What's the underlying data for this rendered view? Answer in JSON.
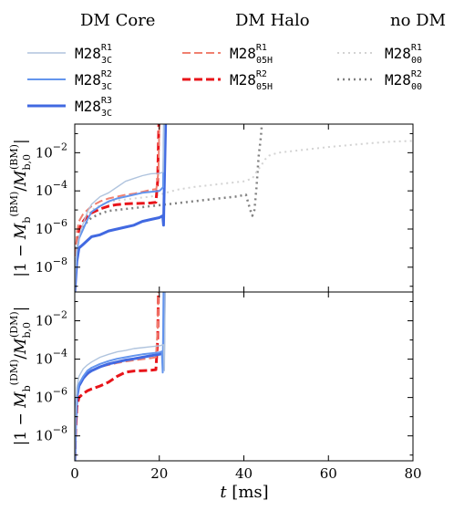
{
  "legend": {
    "groups": [
      {
        "title": "DM Core",
        "entries": [
          {
            "base": "M28",
            "sub": "3C",
            "sup": "R1",
            "color": "#b0c4de",
            "dash": "solid",
            "width": 1.4
          },
          {
            "base": "M28",
            "sub": "3C",
            "sup": "R2",
            "color": "#6495ed",
            "dash": "solid",
            "width": 2.0
          },
          {
            "base": "M28",
            "sub": "3C",
            "sup": "R3",
            "color": "#4169e1",
            "dash": "solid",
            "width": 3.0
          }
        ]
      },
      {
        "title": "DM Halo",
        "entries": [
          {
            "base": "M28",
            "sub": "05H",
            "sup": "R1",
            "color": "#f08070",
            "dash": "dashed",
            "width": 2.0
          },
          {
            "base": "M28",
            "sub": "05H",
            "sup": "R2",
            "color": "#e8141a",
            "dash": "dashed",
            "width": 3.0
          }
        ]
      },
      {
        "title": "no DM",
        "entries": [
          {
            "base": "M28",
            "sub": "00",
            "sup": "R1",
            "color": "#d3d3d3",
            "dash": "dotted",
            "width": 2.0
          },
          {
            "base": "M28",
            "sub": "00",
            "sup": "R2",
            "color": "#808080",
            "dash": "dotted",
            "width": 2.5
          }
        ]
      }
    ]
  },
  "chart_data": [
    {
      "type": "line",
      "panel": "top",
      "ylabel": "|1 − M_b^(BM)/M_b,0^(BM)|",
      "xlim": [
        0,
        80
      ],
      "ylim_log10": [
        -9.3,
        -0.5
      ],
      "yscale": "log",
      "yticks": [
        "10^-8",
        "10^-6",
        "10^-4",
        "10^-2"
      ],
      "series": [
        {
          "name": "M28_3C^R1",
          "points": [
            [
              0,
              -9.3
            ],
            [
              0.2,
              -8.0
            ],
            [
              0.5,
              -7
            ],
            [
              1,
              -6.4
            ],
            [
              2,
              -5.7
            ],
            [
              3,
              -5.1
            ],
            [
              4,
              -4.7
            ],
            [
              6,
              -4.3
            ],
            [
              8,
              -4.1
            ],
            [
              10,
              -3.8
            ],
            [
              12,
              -3.5
            ],
            [
              14,
              -3.35
            ],
            [
              16,
              -3.2
            ],
            [
              18,
              -3.1
            ],
            [
              20,
              -3.08
            ],
            [
              20.5,
              -3.05
            ],
            [
              20.9,
              -3.0
            ],
            [
              21.1,
              -0.4
            ]
          ]
        },
        {
          "name": "M28_3C^R2",
          "points": [
            [
              0,
              -9.3
            ],
            [
              0.2,
              -8.2
            ],
            [
              0.5,
              -7.2
            ],
            [
              1,
              -6.5
            ],
            [
              2,
              -6.0
            ],
            [
              3,
              -5.5
            ],
            [
              4,
              -5.1
            ],
            [
              6,
              -4.8
            ],
            [
              8,
              -4.55
            ],
            [
              10,
              -4.4
            ],
            [
              12,
              -4.3
            ],
            [
              14,
              -4.2
            ],
            [
              16,
              -4.1
            ],
            [
              18,
              -4.05
            ],
            [
              20,
              -4.0
            ],
            [
              20.5,
              -3.9
            ],
            [
              20.9,
              -3.8
            ],
            [
              21.1,
              -0.4
            ]
          ]
        },
        {
          "name": "M28_3C^R3",
          "points": [
            [
              0,
              -9.3
            ],
            [
              0.2,
              -8.7
            ],
            [
              0.5,
              -7.7
            ],
            [
              1,
              -7.0
            ],
            [
              2,
              -6.8
            ],
            [
              3,
              -6.6
            ],
            [
              4,
              -6.4
            ],
            [
              6,
              -6.3
            ],
            [
              8,
              -6.1
            ],
            [
              10,
              -6.0
            ],
            [
              12,
              -5.9
            ],
            [
              14,
              -5.8
            ],
            [
              16,
              -5.6
            ],
            [
              18,
              -5.5
            ],
            [
              20,
              -5.4
            ],
            [
              20.8,
              -5.3
            ],
            [
              21.0,
              -5.8
            ],
            [
              21.1,
              -4.5
            ],
            [
              21.5,
              -0.4
            ]
          ]
        },
        {
          "name": "M28_05H^R1",
          "points": [
            [
              0,
              -9.3
            ],
            [
              0.2,
              -7.5
            ],
            [
              0.5,
              -6.2
            ],
            [
              1,
              -5.6
            ],
            [
              2,
              -5.2
            ],
            [
              3,
              -5.0
            ],
            [
              4,
              -4.8
            ],
            [
              6,
              -4.55
            ],
            [
              8,
              -4.4
            ],
            [
              10,
              -4.3
            ],
            [
              12,
              -4.2
            ],
            [
              14,
              -4.15
            ],
            [
              16,
              -4.05
            ],
            [
              18,
              -3.95
            ],
            [
              19.3,
              -3.9
            ],
            [
              19.8,
              -3.0
            ],
            [
              20.0,
              -0.4
            ]
          ]
        },
        {
          "name": "M28_05H^R2",
          "points": [
            [
              0,
              -9.3
            ],
            [
              0.2,
              -7.8
            ],
            [
              0.5,
              -6.7
            ],
            [
              1,
              -6.0
            ],
            [
              2,
              -5.6
            ],
            [
              3,
              -5.3
            ],
            [
              4,
              -5.15
            ],
            [
              6,
              -4.95
            ],
            [
              8,
              -4.8
            ],
            [
              10,
              -4.72
            ],
            [
              12,
              -4.68
            ],
            [
              14,
              -4.66
            ],
            [
              16,
              -4.65
            ],
            [
              18,
              -4.63
            ],
            [
              19.2,
              -4.6
            ],
            [
              19.6,
              -3.5
            ],
            [
              19.9,
              -0.4
            ]
          ]
        },
        {
          "name": "M28_00^R1",
          "points": [
            [
              0,
              -9.3
            ],
            [
              0.2,
              -7.5
            ],
            [
              0.5,
              -6.5
            ],
            [
              1,
              -6.0
            ],
            [
              2,
              -5.6
            ],
            [
              3,
              -5.3
            ],
            [
              4,
              -5.0
            ],
            [
              6,
              -4.75
            ],
            [
              8,
              -4.6
            ],
            [
              10,
              -4.5
            ],
            [
              12,
              -4.45
            ],
            [
              14,
              -4.4
            ],
            [
              16,
              -4.35
            ],
            [
              18,
              -4.3
            ],
            [
              20,
              -4.2
            ],
            [
              24,
              -3.95
            ],
            [
              28,
              -3.8
            ],
            [
              32,
              -3.7
            ],
            [
              36,
              -3.6
            ],
            [
              40,
              -3.5
            ],
            [
              42,
              -3.35
            ],
            [
              43,
              -3.0
            ],
            [
              44,
              -2.7
            ],
            [
              45,
              -2.35
            ],
            [
              46,
              -2.15
            ],
            [
              48,
              -2.0
            ],
            [
              52,
              -1.9
            ],
            [
              56,
              -1.8
            ],
            [
              60,
              -1.7
            ],
            [
              65,
              -1.6
            ],
            [
              70,
              -1.5
            ],
            [
              75,
              -1.42
            ],
            [
              80,
              -1.38
            ]
          ]
        },
        {
          "name": "M28_00^R2",
          "points": [
            [
              0,
              -9.3
            ],
            [
              0.2,
              -7.6
            ],
            [
              0.5,
              -6.7
            ],
            [
              1,
              -6.3
            ],
            [
              2,
              -5.9
            ],
            [
              3,
              -5.6
            ],
            [
              4,
              -5.4
            ],
            [
              6,
              -5.2
            ],
            [
              8,
              -5.05
            ],
            [
              10,
              -5.0
            ],
            [
              12,
              -4.95
            ],
            [
              14,
              -4.9
            ],
            [
              16,
              -4.85
            ],
            [
              18,
              -4.8
            ],
            [
              20,
              -4.75
            ],
            [
              22,
              -4.7
            ],
            [
              26,
              -4.6
            ],
            [
              30,
              -4.5
            ],
            [
              34,
              -4.4
            ],
            [
              38,
              -4.3
            ],
            [
              40.5,
              -4.2
            ],
            [
              41.5,
              -5.0
            ],
            [
              42,
              -5.3
            ],
            [
              42.5,
              -5.0
            ],
            [
              43,
              -3.8
            ],
            [
              43.5,
              -2.2
            ],
            [
              44,
              -1.2
            ],
            [
              44.3,
              -0.4
            ]
          ]
        }
      ]
    },
    {
      "type": "line",
      "panel": "bottom",
      "ylabel": "|1 − M_b^(DM)/M_b,0^(DM)|",
      "xlabel": "t [ms]",
      "xlim": [
        0,
        80
      ],
      "xticks": [
        "0",
        "20",
        "40",
        "60",
        "80"
      ],
      "ylim_log10": [
        -9.3,
        -0.5
      ],
      "yscale": "log",
      "yticks": [
        "10^-8",
        "10^-6",
        "10^-4",
        "10^-2"
      ],
      "series": [
        {
          "name": "M28_3C^R1",
          "points": [
            [
              0,
              -9.3
            ],
            [
              0.2,
              -7.0
            ],
            [
              0.5,
              -5.5
            ],
            [
              1,
              -4.9
            ],
            [
              2,
              -4.5
            ],
            [
              3,
              -4.3
            ],
            [
              4,
              -4.15
            ],
            [
              6,
              -3.9
            ],
            [
              8,
              -3.75
            ],
            [
              10,
              -3.62
            ],
            [
              12,
              -3.55
            ],
            [
              14,
              -3.45
            ],
            [
              16,
              -3.4
            ],
            [
              18,
              -3.35
            ],
            [
              20,
              -3.3
            ],
            [
              21,
              -3.25
            ],
            [
              21.2,
              -4.6
            ],
            [
              21.4,
              -0.4
            ]
          ]
        },
        {
          "name": "M28_3C^R2",
          "points": [
            [
              0,
              -9.3
            ],
            [
              0.2,
              -7.2
            ],
            [
              0.5,
              -5.9
            ],
            [
              1,
              -5.3
            ],
            [
              2,
              -4.9
            ],
            [
              3,
              -4.6
            ],
            [
              4,
              -4.45
            ],
            [
              6,
              -4.25
            ],
            [
              8,
              -4.1
            ],
            [
              10,
              -3.98
            ],
            [
              12,
              -3.9
            ],
            [
              14,
              -3.82
            ],
            [
              16,
              -3.75
            ],
            [
              18,
              -3.7
            ],
            [
              20,
              -3.65
            ],
            [
              20.6,
              -3.6
            ],
            [
              20.8,
              -4.7
            ],
            [
              21.0,
              -0.4
            ]
          ]
        },
        {
          "name": "M28_3C^R3",
          "points": [
            [
              0,
              -9.3
            ],
            [
              0.2,
              -7.3
            ],
            [
              0.5,
              -6.0
            ],
            [
              1,
              -5.4
            ],
            [
              2,
              -5.0
            ],
            [
              3,
              -4.75
            ],
            [
              4,
              -4.6
            ],
            [
              6,
              -4.4
            ],
            [
              8,
              -4.25
            ],
            [
              10,
              -4.15
            ],
            [
              12,
              -4.05
            ],
            [
              14,
              -3.98
            ],
            [
              16,
              -3.9
            ],
            [
              18,
              -3.82
            ],
            [
              20,
              -3.75
            ],
            [
              20.8,
              -3.7
            ],
            [
              21.0,
              -4.4
            ],
            [
              21.2,
              -0.4
            ]
          ]
        },
        {
          "name": "M28_05H^R1",
          "points": [
            [
              0,
              -9.3
            ],
            [
              0.2,
              -7.2
            ],
            [
              0.5,
              -6.0
            ],
            [
              1,
              -5.4
            ],
            [
              2,
              -5.0
            ],
            [
              3,
              -4.8
            ],
            [
              4,
              -4.6
            ],
            [
              6,
              -4.4
            ],
            [
              8,
              -4.3
            ],
            [
              10,
              -4.2
            ],
            [
              12,
              -4.12
            ],
            [
              14,
              -4.06
            ],
            [
              16,
              -4.0
            ],
            [
              18,
              -3.95
            ],
            [
              19.2,
              -3.9
            ],
            [
              19.6,
              -2.5
            ],
            [
              19.8,
              -0.4
            ]
          ]
        },
        {
          "name": "M28_05H^R2",
          "points": [
            [
              0,
              -9.3
            ],
            [
              0.2,
              -7.8
            ],
            [
              0.5,
              -6.5
            ],
            [
              1,
              -6.0
            ],
            [
              2,
              -5.8
            ],
            [
              3,
              -5.65
            ],
            [
              4,
              -5.55
            ],
            [
              6,
              -5.4
            ],
            [
              8,
              -5.2
            ],
            [
              10,
              -4.9
            ],
            [
              12,
              -4.68
            ],
            [
              14,
              -4.62
            ],
            [
              16,
              -4.6
            ],
            [
              18,
              -4.58
            ],
            [
              19.2,
              -4.55
            ],
            [
              19.6,
              -3.0
            ],
            [
              19.8,
              -0.4
            ]
          ]
        }
      ]
    }
  ]
}
